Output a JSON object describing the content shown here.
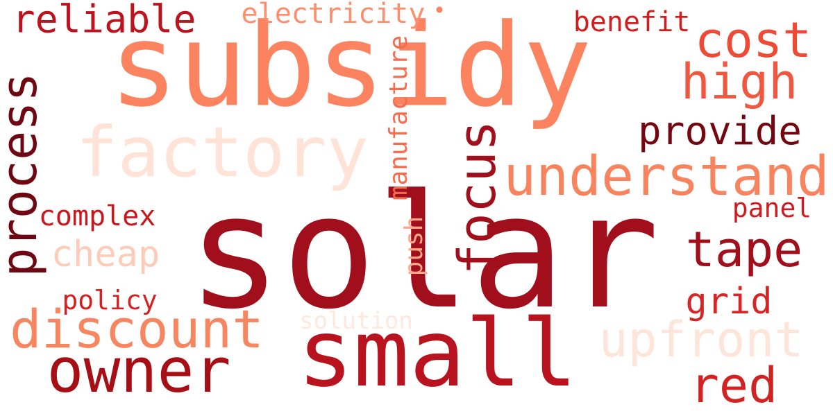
{
  "cloud": {
    "dot_color": "#f8875f",
    "words": [
      {
        "text": "solar",
        "color": "#a10f1c",
        "orientation": "horizontal"
      },
      {
        "text": "subsidy",
        "color": "#fc8360",
        "orientation": "horizontal"
      },
      {
        "text": "small",
        "color": "#b8131e",
        "orientation": "horizontal"
      },
      {
        "text": "factory",
        "color": "#fee3d6",
        "orientation": "horizontal"
      },
      {
        "text": "owner",
        "color": "#a50f15",
        "orientation": "horizontal"
      },
      {
        "text": "understand",
        "color": "#f7845e",
        "orientation": "horizontal"
      },
      {
        "text": "focus",
        "color": "#a10f1c",
        "orientation": "vertical"
      },
      {
        "text": "discount",
        "color": "#f6865f",
        "orientation": "horizontal"
      },
      {
        "text": "upfront",
        "color": "#fee5da",
        "orientation": "horizontal"
      },
      {
        "text": "process",
        "color": "#6e0712",
        "orientation": "vertical"
      },
      {
        "text": "red",
        "color": "#d22323",
        "orientation": "horizontal"
      },
      {
        "text": "tape",
        "color": "#a10f1c",
        "orientation": "horizontal"
      },
      {
        "text": "high",
        "color": "#ef5840",
        "orientation": "horizontal"
      },
      {
        "text": "cost",
        "color": "#ee4b37",
        "orientation": "horizontal"
      },
      {
        "text": "reliable",
        "color": "#bb141e",
        "orientation": "horizontal"
      },
      {
        "text": "provide",
        "color": "#73060f",
        "orientation": "horizontal"
      },
      {
        "text": "grid",
        "color": "#d62526",
        "orientation": "horizontal"
      },
      {
        "text": "cheap",
        "color": "#fdccb8",
        "orientation": "horizontal"
      },
      {
        "text": "electricity",
        "color": "#fb8f6e",
        "orientation": "horizontal"
      },
      {
        "text": "benefit",
        "color": "#d01d20",
        "orientation": "horizontal"
      },
      {
        "text": "complex",
        "color": "#c9181d",
        "orientation": "horizontal"
      },
      {
        "text": "policy",
        "color": "#d42020",
        "orientation": "horizontal"
      },
      {
        "text": "panel",
        "color": "#cf1c1f",
        "orientation": "horizontal"
      },
      {
        "text": "manufacture",
        "color": "#f46b4d",
        "orientation": "vertical"
      },
      {
        "text": "push",
        "color": "#fca78b",
        "orientation": "vertical"
      },
      {
        "text": "solution",
        "color": "#fee9df",
        "orientation": "horizontal"
      }
    ]
  }
}
